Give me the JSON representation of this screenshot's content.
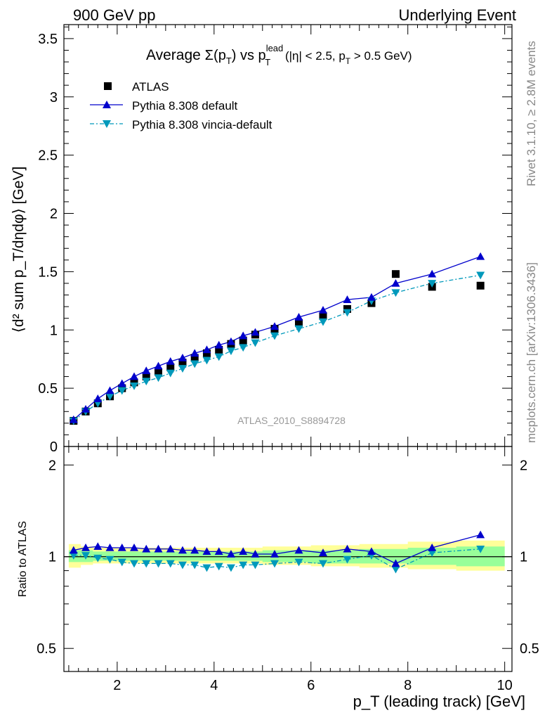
{
  "header": {
    "left": "900 GeV pp",
    "right": "Underlying Event"
  },
  "side_text": {
    "rivet": "Rivet 3.1.10, ≥ 2.8M events",
    "mcplots": "mcplots.cern.ch [arXiv:1306.3436]"
  },
  "watermark": "ATLAS_2010_S8894728",
  "title": {
    "prefix": "Average ",
    "sigma": "Σ(p",
    "sub_t": "T",
    "mid": ") vs p",
    "sup_lead": "lead",
    "sub_t2": "T",
    "cut1": " (|η| < 2.5, p",
    "sub_t3": "T",
    "cut2": " > 0.5 GeV)"
  },
  "legend": {
    "atlas": "ATLAS",
    "default": "Pythia 8.308 default",
    "vincia": "Pythia 8.308 vincia-default"
  },
  "colors": {
    "atlas": "#000000",
    "default": "#0000cc",
    "vincia": "#0099bb",
    "band_inner": "#99ff99",
    "band_outer": "#ffff99"
  },
  "chart_data": [
    {
      "type": "scatter",
      "panel": "main",
      "ylabel": "⟨d² sum p_T/dηdφ⟩ [GeV]",
      "ylim": [
        0,
        3.62
      ],
      "xlim": [
        0.9,
        10.15
      ],
      "y_ticks": [
        "0",
        "0.5",
        "1",
        "1.5",
        "2",
        "2.5",
        "3",
        "3.5"
      ],
      "x": [
        1.1,
        1.35,
        1.6,
        1.85,
        2.1,
        2.35,
        2.6,
        2.85,
        3.1,
        3.35,
        3.6,
        3.85,
        4.1,
        4.35,
        4.6,
        4.85,
        5.25,
        5.75,
        6.25,
        6.75,
        7.25,
        7.75,
        8.5,
        9.5
      ],
      "series": [
        {
          "name": "ATLAS",
          "values": [
            0.22,
            0.3,
            0.37,
            0.43,
            0.5,
            0.55,
            0.6,
            0.64,
            0.68,
            0.72,
            0.76,
            0.8,
            0.83,
            0.88,
            0.91,
            0.96,
            1.01,
            1.06,
            1.12,
            1.18,
            1.23,
            1.48,
            1.37,
            1.38
          ]
        },
        {
          "name": "Pythia 8.308 default",
          "values": [
            0.23,
            0.32,
            0.41,
            0.48,
            0.54,
            0.6,
            0.65,
            0.69,
            0.73,
            0.76,
            0.8,
            0.83,
            0.87,
            0.9,
            0.95,
            0.98,
            1.03,
            1.11,
            1.17,
            1.26,
            1.28,
            1.4,
            1.48,
            1.63
          ]
        },
        {
          "name": "Pythia 8.308 vincia-default",
          "values": [
            0.22,
            0.3,
            0.37,
            0.43,
            0.48,
            0.52,
            0.56,
            0.59,
            0.63,
            0.67,
            0.71,
            0.74,
            0.77,
            0.82,
            0.85,
            0.89,
            0.95,
            1.01,
            1.07,
            1.15,
            1.25,
            1.32,
            1.4,
            1.47
          ]
        }
      ]
    },
    {
      "type": "line",
      "panel": "ratio",
      "xlabel": "p_T (leading track) [GeV]",
      "ylabel": "Ratio to ATLAS",
      "ylim": [
        0.42,
        2.3
      ],
      "log_y": true,
      "x_ticks": [
        "2",
        "4",
        "6",
        "8",
        "10"
      ],
      "y_ticks": [
        "0.5",
        "1",
        "2"
      ],
      "x": [
        1.1,
        1.35,
        1.6,
        1.85,
        2.1,
        2.35,
        2.6,
        2.85,
        3.1,
        3.35,
        3.6,
        3.85,
        4.1,
        4.35,
        4.6,
        4.85,
        5.25,
        5.75,
        6.25,
        6.75,
        7.25,
        7.75,
        8.5,
        9.5
      ],
      "series": [
        {
          "name": "Pythia 8.308 default",
          "values": [
            1.05,
            1.07,
            1.08,
            1.07,
            1.07,
            1.07,
            1.06,
            1.06,
            1.06,
            1.05,
            1.05,
            1.04,
            1.04,
            1.02,
            1.04,
            1.02,
            1.02,
            1.05,
            1.03,
            1.06,
            1.04,
            0.95,
            1.07,
            1.18
          ]
        },
        {
          "name": "Pythia 8.308 vincia-default",
          "values": [
            1.01,
            1.01,
            0.99,
            0.98,
            0.96,
            0.95,
            0.95,
            0.95,
            0.95,
            0.94,
            0.94,
            0.92,
            0.93,
            0.92,
            0.94,
            0.94,
            0.95,
            0.96,
            0.95,
            0.98,
            1.01,
            0.91,
            1.03,
            1.06
          ]
        }
      ],
      "band_inner": [
        [
          1.0,
          0.96,
          1.05
        ],
        [
          1.25,
          0.96,
          1.05
        ],
        [
          1.5,
          0.97,
          1.04
        ],
        [
          2.0,
          0.97,
          1.04
        ],
        [
          3.0,
          0.97,
          1.04
        ],
        [
          4.0,
          0.97,
          1.04
        ],
        [
          5.0,
          0.96,
          1.05
        ],
        [
          6.0,
          0.95,
          1.05
        ],
        [
          7.0,
          0.95,
          1.06
        ],
        [
          8.0,
          0.94,
          1.07
        ],
        [
          9.0,
          0.93,
          1.08
        ],
        [
          10.0,
          0.93,
          1.08
        ]
      ],
      "band_outer": [
        [
          1.0,
          0.92,
          1.1
        ],
        [
          1.25,
          0.94,
          1.08
        ],
        [
          1.5,
          0.95,
          1.07
        ],
        [
          2.0,
          0.95,
          1.07
        ],
        [
          3.0,
          0.95,
          1.07
        ],
        [
          4.0,
          0.95,
          1.07
        ],
        [
          5.0,
          0.94,
          1.08
        ],
        [
          6.0,
          0.93,
          1.09
        ],
        [
          7.0,
          0.92,
          1.1
        ],
        [
          8.0,
          0.91,
          1.12
        ],
        [
          9.0,
          0.9,
          1.13
        ],
        [
          10.0,
          0.9,
          1.13
        ]
      ]
    }
  ]
}
